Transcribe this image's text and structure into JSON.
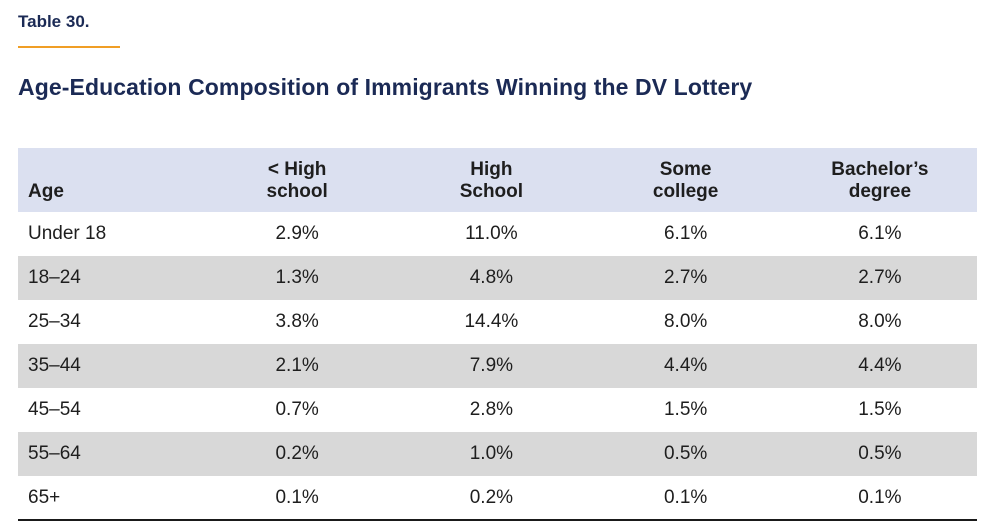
{
  "heading": {
    "table_label": "Table 30.",
    "title": "Age-Education Composition of Immigrants Winning the DV Lottery"
  },
  "table": {
    "header": [
      {
        "line1": "Age",
        "line2": ""
      },
      {
        "line1": "< High",
        "line2": "school"
      },
      {
        "line1": "High",
        "line2": "School"
      },
      {
        "line1": "Some",
        "line2": "college"
      },
      {
        "line1": "Bachelor’s",
        "line2": "degree"
      }
    ],
    "rows": [
      {
        "age": "Under 18",
        "values": [
          "2.9%",
          "11.0%",
          "6.1%",
          "6.1%"
        ]
      },
      {
        "age": "18–24",
        "values": [
          "1.3%",
          "4.8%",
          "2.7%",
          "2.7%"
        ]
      },
      {
        "age": "25–34",
        "values": [
          "3.8%",
          "14.4%",
          "8.0%",
          "8.0%"
        ]
      },
      {
        "age": "35–44",
        "values": [
          "2.1%",
          "7.9%",
          "4.4%",
          "4.4%"
        ]
      },
      {
        "age": "45–54",
        "values": [
          "0.7%",
          "2.8%",
          "1.5%",
          "1.5%"
        ]
      },
      {
        "age": "55–64",
        "values": [
          "0.2%",
          "1.0%",
          "0.5%",
          "0.5%"
        ]
      },
      {
        "age": "65+",
        "values": [
          "0.1%",
          "0.2%",
          "0.1%",
          "0.1%"
        ]
      }
    ]
  },
  "colors": {
    "navy": "#1b2a55",
    "accent_orange": "#f09e25",
    "header_bg": "#dbe0f0",
    "row_alt_bg": "#d8d8d8",
    "body_text": "#1e1e1e",
    "rule_dark": "#1a1a1a"
  }
}
